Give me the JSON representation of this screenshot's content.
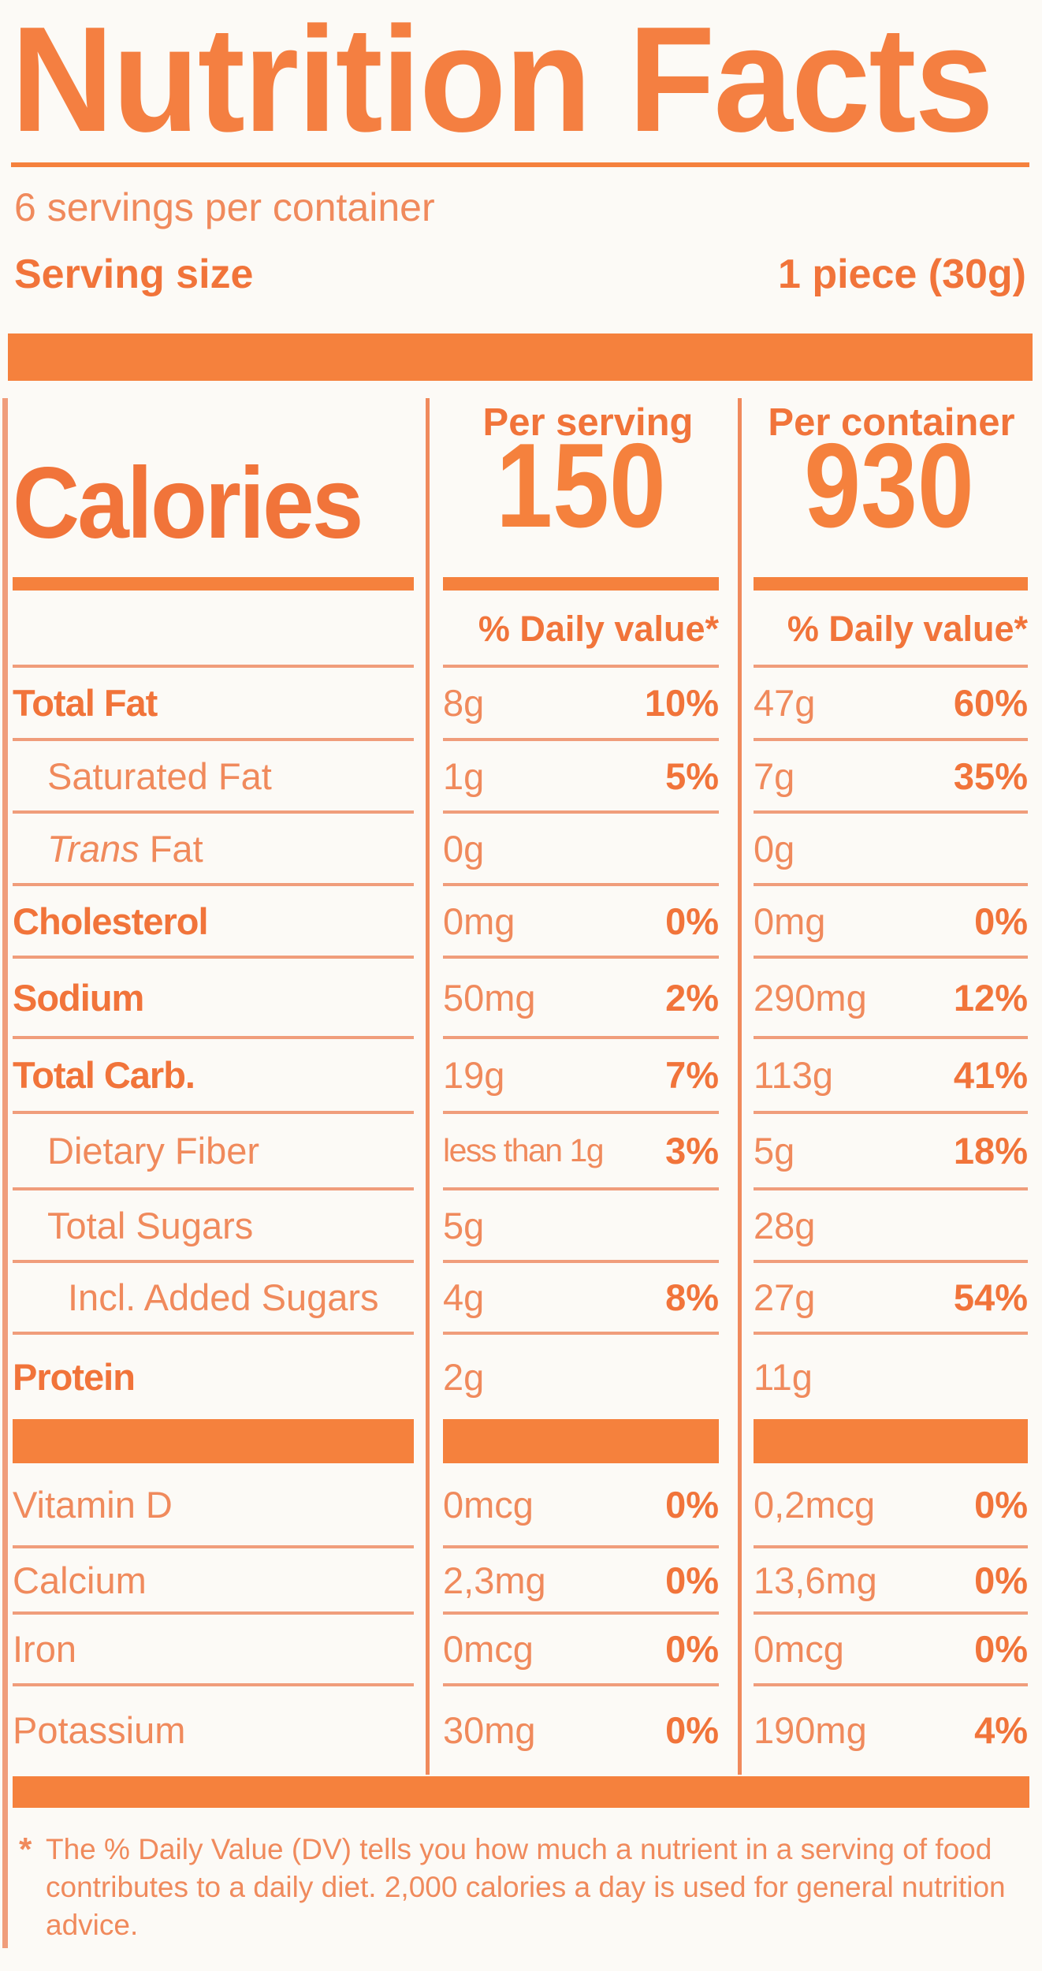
{
  "colors": {
    "accent_orange": "#f5813d",
    "bold_text_orange": "#f1743a",
    "regular_text_orange": "#f08a5c",
    "divider_orange": "#f09d7b",
    "background": "#fcfaf6"
  },
  "header": {
    "title": "Nutrition Facts",
    "servings_per_container": "6 servings per container",
    "serving_size_label": "Serving size",
    "serving_size_value": "1 piece (30g)"
  },
  "calories": {
    "label": "Calories",
    "per_serving_header": "Per serving",
    "per_container_header": "Per container",
    "per_serving_value": "150",
    "per_container_value": "930",
    "daily_value_header": "% Daily value*"
  },
  "nutrients": [
    {
      "label": "Total Fat",
      "bold": true,
      "indent": 0,
      "serving_amount": "8g",
      "serving_dv": "10%",
      "container_amount": "47g",
      "container_dv": "60%"
    },
    {
      "label": "Saturated Fat",
      "bold": false,
      "indent": 1,
      "serving_amount": "1g",
      "serving_dv": "5%",
      "container_amount": "7g",
      "container_dv": "35%"
    },
    {
      "label": "Trans Fat",
      "bold": false,
      "indent": 1,
      "italic_prefix": "Trans",
      "serving_amount": "0g",
      "serving_dv": "",
      "container_amount": "0g",
      "container_dv": ""
    },
    {
      "label": "Cholesterol",
      "bold": true,
      "indent": 0,
      "serving_amount": "0mg",
      "serving_dv": "0%",
      "container_amount": "0mg",
      "container_dv": "0%"
    },
    {
      "label": "Sodium",
      "bold": true,
      "indent": 0,
      "serving_amount": "50mg",
      "serving_dv": "2%",
      "container_amount": "290mg",
      "container_dv": "12%"
    },
    {
      "label": "Total Carb.",
      "bold": true,
      "indent": 0,
      "serving_amount": "19g",
      "serving_dv": "7%",
      "container_amount": "113g",
      "container_dv": "41%"
    },
    {
      "label": "Dietary Fiber",
      "bold": false,
      "indent": 1,
      "serving_amount": "less than 1g",
      "serving_dv": "3%",
      "container_amount": "5g",
      "container_dv": "18%"
    },
    {
      "label": "Total Sugars",
      "bold": false,
      "indent": 1,
      "serving_amount": "5g",
      "serving_dv": "",
      "container_amount": "28g",
      "container_dv": ""
    },
    {
      "label": "Incl. Added Sugars",
      "bold": false,
      "indent": 2,
      "serving_amount": "4g",
      "serving_dv": "8%",
      "container_amount": "27g",
      "container_dv": "54%"
    },
    {
      "label": "Protein",
      "bold": true,
      "indent": 0,
      "serving_amount": "2g",
      "serving_dv": "",
      "container_amount": "11g",
      "container_dv": "",
      "no_divider": true
    }
  ],
  "vitamins": [
    {
      "label": "Vitamin D",
      "serving_amount": "0mcg",
      "serving_dv": "0%",
      "container_amount": "0,2mcg",
      "container_dv": "0%"
    },
    {
      "label": "Calcium",
      "serving_amount": "2,3mg",
      "serving_dv": "0%",
      "container_amount": "13,6mg",
      "container_dv": "0%"
    },
    {
      "label": "Iron",
      "serving_amount": "0mcg",
      "serving_dv": "0%",
      "container_amount": "0mcg",
      "container_dv": "0%"
    },
    {
      "label": "Potassium",
      "serving_amount": "30mg",
      "serving_dv": "0%",
      "container_amount": "190mg",
      "container_dv": "4%",
      "no_divider": true
    }
  ],
  "footnote": {
    "star": "*",
    "text": "The % Daily Value (DV) tells you how much a nutrient in a serving of food contributes to a daily diet. 2,000 calories a day is used for general nutrition advice."
  }
}
